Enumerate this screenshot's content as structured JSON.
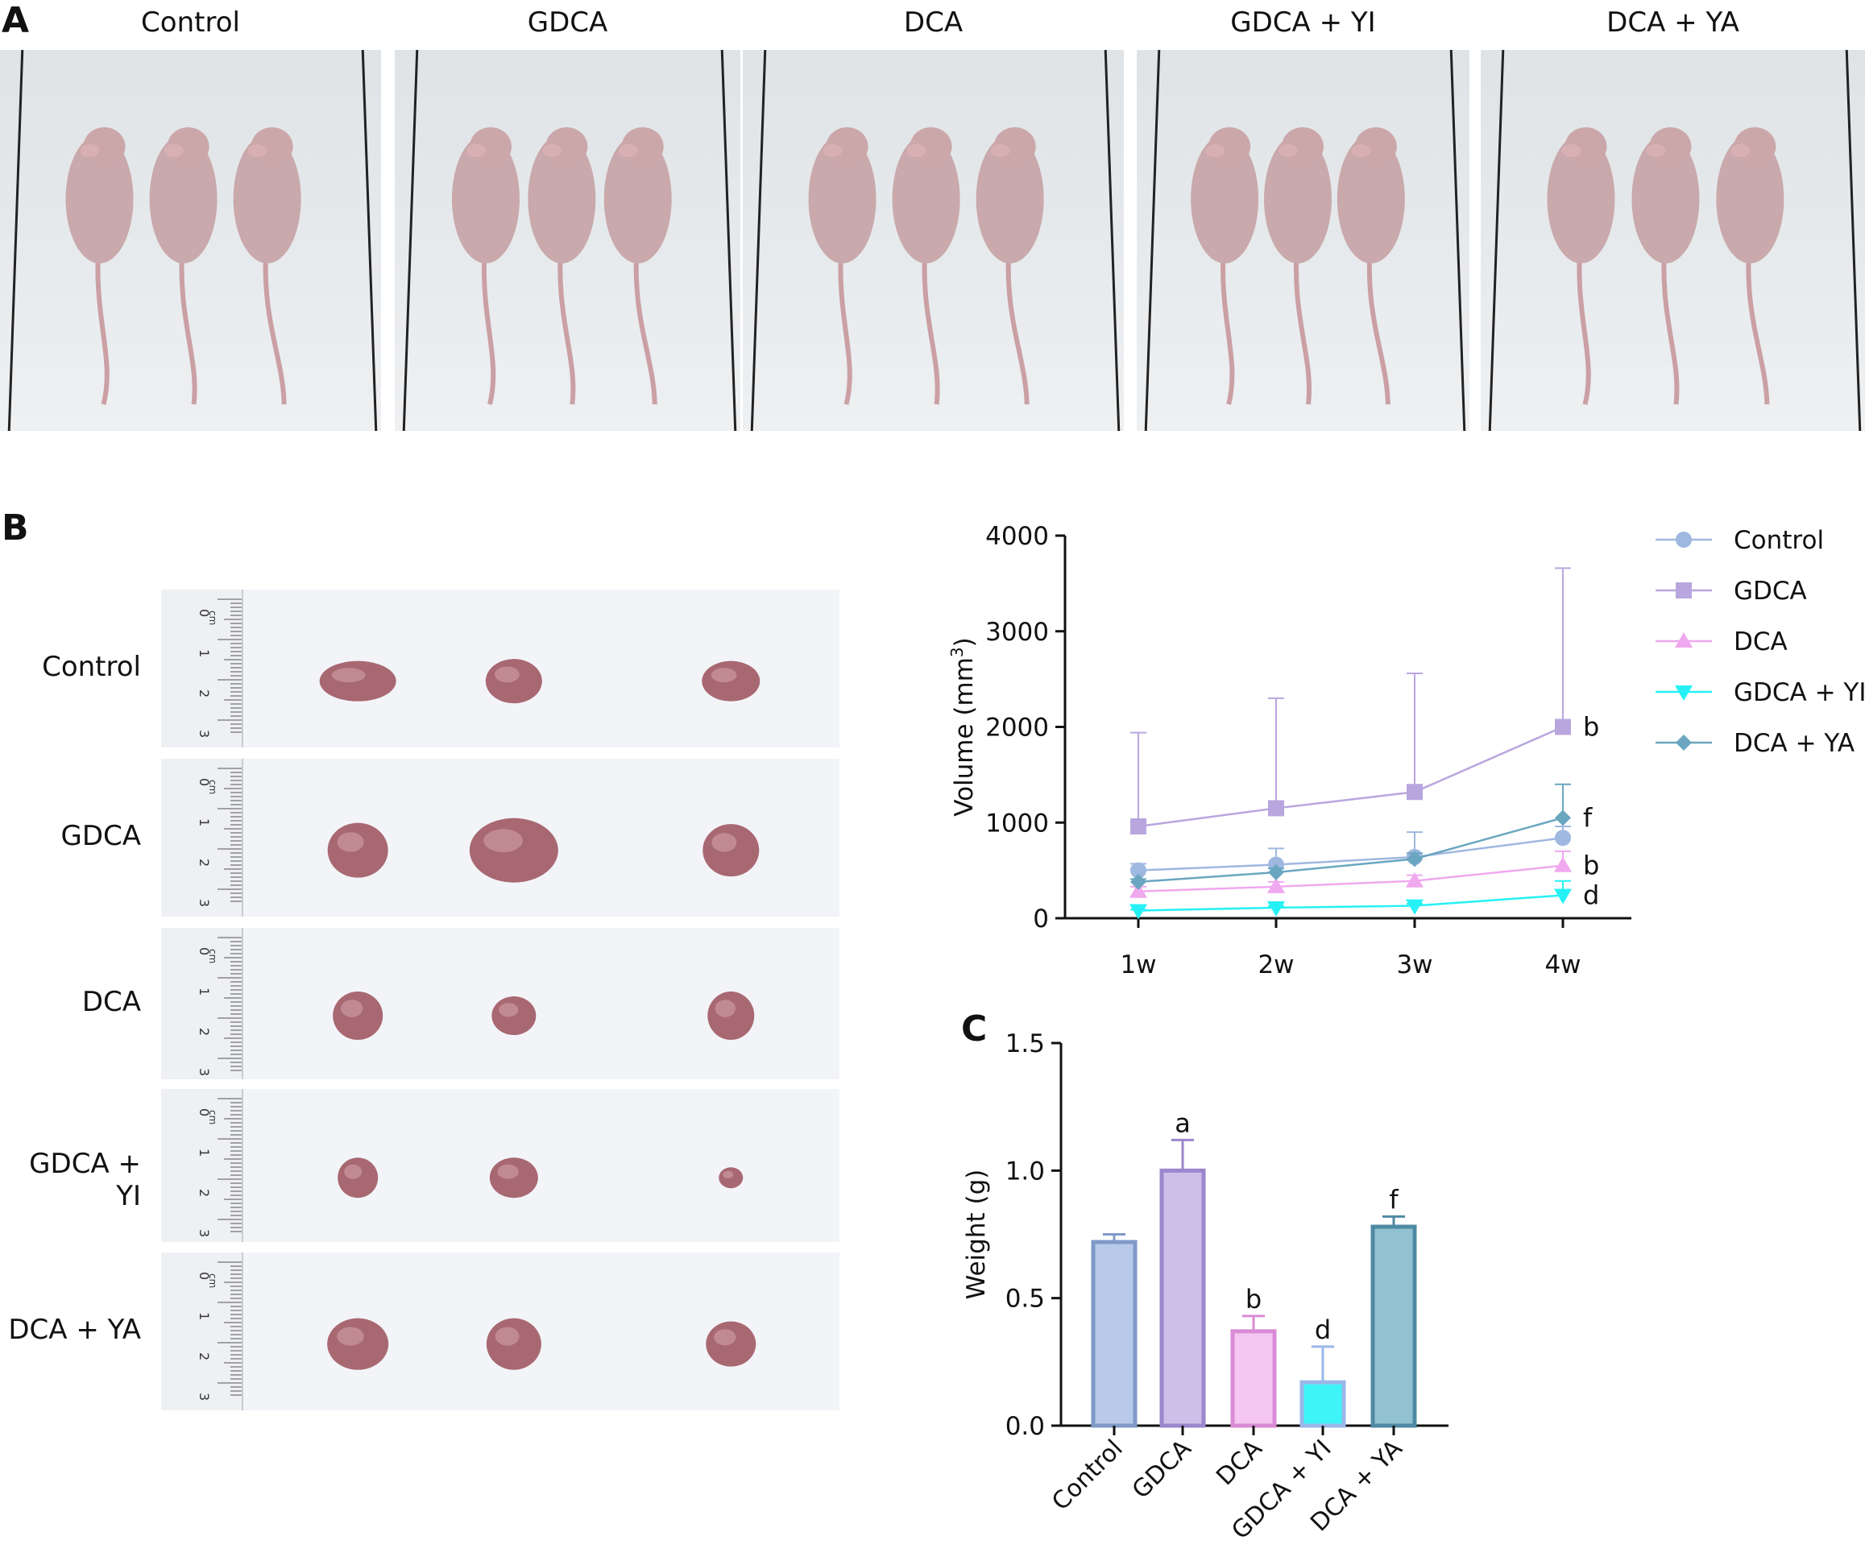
{
  "panels": {
    "a": "A",
    "b": "B",
    "c": "C"
  },
  "groups": [
    "Control",
    "GDCA",
    "DCA",
    "GDCA + YI",
    "DCA + YA"
  ],
  "photo_descriptions": {
    "mice": "nude mice",
    "tumors": "tumor"
  },
  "ruler_unit": "cm",
  "ruler_ticks": [
    "0",
    "1",
    "2",
    "3"
  ],
  "colors": {
    "control": "#9fb8e0",
    "gdca": "#b9a6de",
    "dca": "#f0a8ee",
    "gdca_yi": "#25f1f5",
    "dca_ya": "#6aa6c0"
  },
  "chart_data": [
    {
      "type": "line",
      "ylabel": "Volume (mm",
      "ylabel_sup": "3",
      "ylabel_end": ")",
      "x": [
        "1w",
        "2w",
        "3w",
        "4w"
      ],
      "ylim": [
        0,
        4000
      ],
      "yticks": [
        "0",
        "1000",
        "2000",
        "3000",
        "4000"
      ],
      "legend_position": "right",
      "series": [
        {
          "name": "Control",
          "marker": "circle",
          "values": [
            500,
            560,
            640,
            840
          ],
          "err": [
            70,
            170,
            260,
            120
          ],
          "sig": ""
        },
        {
          "name": "GDCA",
          "marker": "square",
          "values": [
            960,
            1150,
            1320,
            2000
          ],
          "err": [
            980,
            1150,
            1240,
            1660
          ],
          "sig": "b"
        },
        {
          "name": "DCA",
          "marker": "triangle-up",
          "values": [
            280,
            330,
            390,
            550
          ],
          "err": [
            50,
            50,
            60,
            150
          ],
          "sig": "b"
        },
        {
          "name": "GDCA + YI",
          "marker": "triangle-down",
          "values": [
            80,
            110,
            130,
            240
          ],
          "err": [
            10,
            15,
            20,
            150
          ],
          "sig": "d"
        },
        {
          "name": "DCA + YA",
          "marker": "diamond",
          "values": [
            380,
            480,
            620,
            1050
          ],
          "err": [
            30,
            40,
            60,
            350
          ],
          "sig": "f"
        }
      ]
    },
    {
      "type": "bar",
      "ylabel": "Weight (g)",
      "categories": [
        "Control",
        "GDCA",
        "DCA",
        "GDCA + YI",
        "DCA + YA"
      ],
      "values": [
        0.72,
        1.0,
        0.37,
        0.17,
        0.78
      ],
      "err": [
        0.03,
        0.12,
        0.06,
        0.14,
        0.04
      ],
      "sig": [
        "",
        "a",
        "b",
        "d",
        "f"
      ],
      "ylim": [
        0,
        1.5
      ],
      "yticks": [
        "0.0",
        "0.5",
        "1.0",
        "1.5"
      ]
    }
  ]
}
